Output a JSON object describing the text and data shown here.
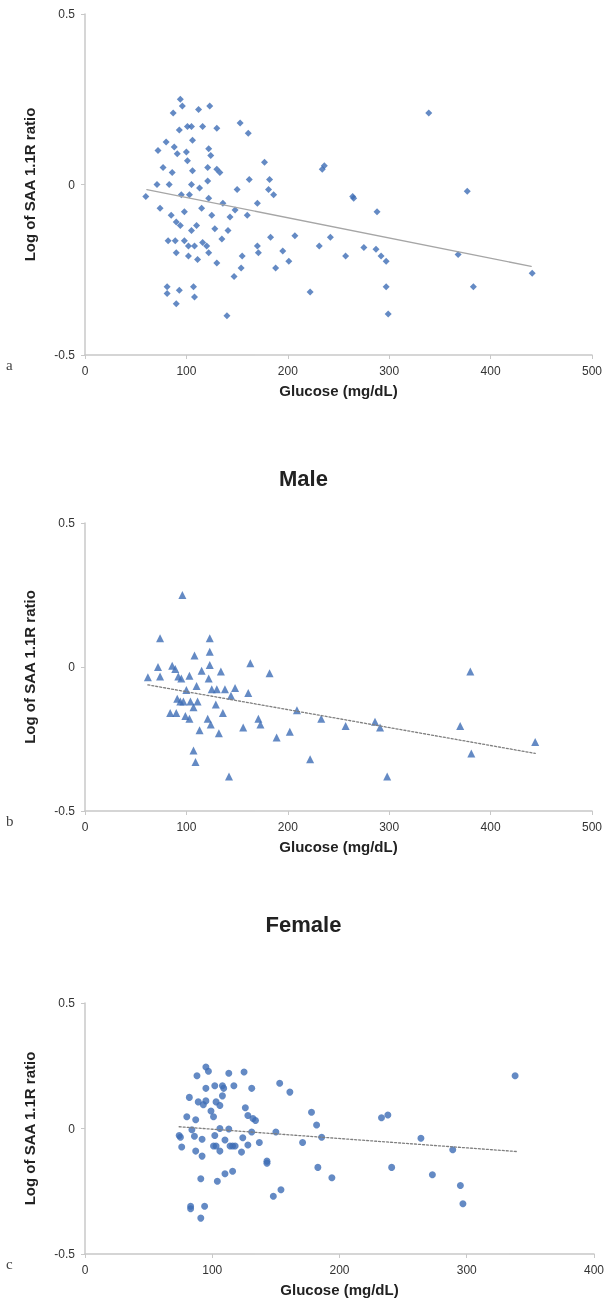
{
  "chart_data": [
    {
      "type": "scatter",
      "xlabel": "Glucose (mg/dL)",
      "ylabel": "Log of SAA 1.1R ratio",
      "xlim": [
        0,
        500
      ],
      "xticks": [
        0,
        100,
        200,
        300,
        400,
        500
      ],
      "ylim": [
        -0.5,
        0.5
      ],
      "yticks": [
        -0.5,
        0,
        0.5
      ],
      "grid": false,
      "marker": "diamond",
      "annotations": [
        "a"
      ],
      "series": [
        {
          "color": "#3d6db5",
          "x": [
            60,
            71,
            72,
            74,
            77,
            80,
            82,
            81,
            81,
            83,
            85,
            86,
            87,
            88,
            89,
            90,
            90,
            90,
            91,
            93,
            93,
            94,
            96,
            94,
            95,
            98,
            98,
            100,
            101,
            101,
            102,
            102,
            103,
            105,
            105,
            105,
            106,
            106,
            107,
            108,
            108,
            110,
            111,
            112,
            113,
            115,
            116,
            116,
            120,
            121,
            121,
            122,
            122,
            123,
            122,
            124,
            125,
            128,
            130,
            130,
            130,
            133,
            135,
            136,
            140,
            141,
            143,
            147,
            148,
            150,
            153,
            154,
            155,
            160,
            161,
            162,
            170,
            170,
            171,
            177,
            181,
            182,
            183,
            186,
            188,
            195,
            201,
            207,
            222,
            231,
            234,
            236,
            242,
            257,
            264,
            265,
            275,
            287,
            288,
            292,
            297,
            297,
            299,
            339,
            368,
            377,
            383,
            441
          ],
          "values": [
            -0.035,
            0,
            0.1,
            -0.07,
            0.05,
            0.125,
            -0.165,
            -0.3,
            -0.32,
            0,
            -0.09,
            0.035,
            0.21,
            0.11,
            -0.165,
            -0.35,
            -0.11,
            -0.2,
            0.09,
            -0.31,
            0.16,
            0.25,
            0.23,
            -0.12,
            -0.03,
            -0.08,
            -0.165,
            0.095,
            0.07,
            0.17,
            -0.21,
            -0.18,
            -0.03,
            0,
            -0.135,
            0.17,
            0.13,
            0.04,
            -0.3,
            -0.33,
            -0.18,
            -0.12,
            -0.22,
            0.22,
            -0.01,
            -0.07,
            0.17,
            -0.17,
            -0.18,
            0.01,
            0.05,
            -0.04,
            -0.2,
            0.23,
            0.105,
            0.085,
            -0.09,
            -0.13,
            0.165,
            -0.23,
            0.045,
            0.035,
            -0.16,
            -0.055,
            -0.385,
            -0.135,
            -0.095,
            -0.27,
            -0.075,
            -0.015,
            0.18,
            -0.245,
            -0.21,
            -0.09,
            0.15,
            0.015,
            -0.055,
            -0.18,
            -0.2,
            0.065,
            -0.015,
            0.015,
            -0.155,
            -0.03,
            -0.245,
            -0.195,
            -0.225,
            -0.15,
            -0.315,
            -0.18,
            0.045,
            0.055,
            -0.155,
            -0.21,
            -0.035,
            -0.04,
            -0.185,
            -0.19,
            -0.08,
            -0.21,
            -0.225,
            -0.3,
            -0.38,
            0.21,
            -0.205,
            -0.02,
            -0.3,
            -0.26
          ]
        },
        {
          "type": "line",
          "color": "#a6a6a6",
          "line_style": "solid",
          "marker": "none",
          "x": [
            61,
            440
          ],
          "values": [
            -0.015,
            -0.24
          ]
        }
      ]
    },
    {
      "type": "scatter",
      "title": "Male",
      "xlabel": "Glucose (mg/dL)",
      "ylabel": "Log of SAA 1.1R ratio",
      "xlim": [
        0,
        500
      ],
      "xticks": [
        0,
        100,
        200,
        300,
        400,
        500
      ],
      "ylim": [
        -0.5,
        0.5
      ],
      "yticks": [
        -0.5,
        0,
        0.5
      ],
      "grid": false,
      "marker": "triangle",
      "annotations": [
        "b"
      ],
      "series": [
        {
          "color": "#3d6db5",
          "x": [
            62,
            72,
            74,
            74,
            84,
            86,
            89,
            90,
            91,
            92,
            94,
            96,
            95,
            97,
            99,
            100,
            103,
            103,
            104,
            107,
            107,
            108,
            109,
            110,
            111,
            113,
            115,
            121,
            122,
            123,
            123,
            123,
            124,
            125,
            129,
            130,
            132,
            134,
            136,
            138,
            142,
            144,
            148,
            156,
            161,
            163,
            171,
            173,
            182,
            189,
            202,
            209,
            222,
            233,
            257,
            286,
            291,
            298,
            370,
            380,
            381,
            444
          ],
          "values": [
            -0.036,
            0,
            0.1,
            -0.033,
            -0.16,
            0.004,
            -0.007,
            -0.16,
            -0.11,
            -0.033,
            -0.12,
            0.25,
            -0.04,
            -0.12,
            -0.17,
            -0.08,
            -0.18,
            -0.03,
            -0.12,
            -0.29,
            -0.14,
            0.04,
            -0.33,
            -0.066,
            -0.12,
            -0.22,
            -0.013,
            -0.18,
            -0.04,
            0.007,
            0.053,
            0.1,
            -0.2,
            -0.077,
            -0.13,
            -0.077,
            -0.23,
            -0.016,
            -0.16,
            -0.077,
            -0.38,
            -0.1,
            -0.073,
            -0.21,
            -0.09,
            0.013,
            -0.18,
            -0.2,
            -0.022,
            -0.245,
            -0.225,
            -0.15,
            -0.32,
            -0.18,
            -0.205,
            -0.19,
            -0.21,
            -0.38,
            -0.205,
            -0.016,
            -0.3,
            -0.26
          ]
        },
        {
          "type": "line",
          "color": "#7f7f7f",
          "line_style": "dotted",
          "marker": "none",
          "x": [
            62,
            444
          ],
          "values": [
            -0.062,
            -0.3
          ]
        }
      ]
    },
    {
      "type": "scatter",
      "title": "Female",
      "xlabel": "Glucose (mg/dL)",
      "ylabel": "Log of SAA 1.1R ratio",
      "xlim": [
        0,
        400
      ],
      "xticks": [
        0,
        100,
        200,
        300,
        400
      ],
      "ylim": [
        -0.5,
        0.5
      ],
      "yticks": [
        -0.5,
        0,
        0.5
      ],
      "grid": false,
      "marker": "circle",
      "annotations": [
        "c"
      ],
      "series": [
        {
          "color": "#3d6db5",
          "x": [
            74,
            75,
            76,
            80,
            82,
            83,
            83,
            84,
            86,
            87,
            87,
            88,
            89,
            91,
            91,
            92,
            92,
            93,
            94,
            95,
            95,
            95,
            97,
            99,
            101,
            101,
            102,
            102,
            103,
            103,
            104,
            106,
            106,
            106,
            108,
            108,
            109,
            110,
            110,
            113,
            113,
            114,
            116,
            116,
            118,
            117,
            123,
            124,
            125,
            126,
            128,
            128,
            131,
            131,
            132,
            134,
            137,
            143,
            143,
            148,
            150,
            153,
            154,
            161,
            171,
            178,
            182,
            183,
            186,
            194,
            233,
            238,
            241,
            264,
            273,
            289,
            295,
            297,
            338
          ],
          "values": [
            -0.028,
            -0.035,
            -0.074,
            0.047,
            0.124,
            -0.31,
            -0.32,
            -0.005,
            -0.031,
            0.035,
            -0.09,
            0.21,
            0.106,
            -0.2,
            -0.357,
            -0.11,
            -0.043,
            0.095,
            -0.31,
            0.245,
            0.16,
            0.11,
            0.228,
            0.07,
            0.047,
            -0.07,
            0.17,
            -0.028,
            0.106,
            -0.07,
            -0.21,
            -0.09,
            0.092,
            0,
            0.17,
            0.13,
            0.16,
            -0.046,
            -0.18,
            0.22,
            -0.002,
            -0.07,
            -0.07,
            -0.17,
            -0.07,
            0.17,
            -0.094,
            -0.037,
            0.225,
            0.083,
            -0.066,
            0.052,
            -0.014,
            0.16,
            0.04,
            0.032,
            -0.056,
            -0.13,
            -0.138,
            -0.27,
            -0.014,
            0.18,
            -0.244,
            0.145,
            -0.056,
            0.065,
            0.014,
            -0.155,
            -0.035,
            -0.196,
            0.043,
            0.054,
            -0.155,
            -0.039,
            -0.184,
            -0.085,
            -0.227,
            -0.3,
            0.21
          ]
        },
        {
          "type": "line",
          "color": "#7f7f7f",
          "line_style": "dotted",
          "marker": "none",
          "x": [
            74,
            340
          ],
          "values": [
            0.007,
            -0.092
          ]
        }
      ]
    }
  ]
}
